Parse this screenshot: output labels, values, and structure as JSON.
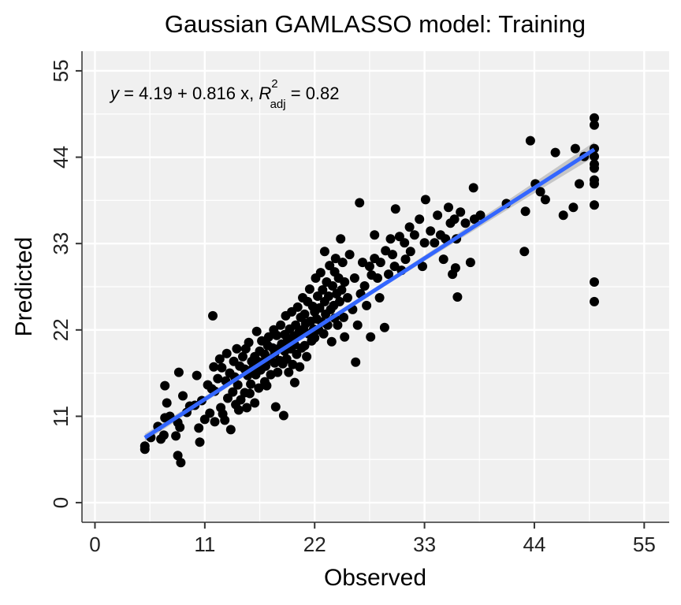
{
  "chart_data": {
    "type": "scatter",
    "title": "Gaussian GAMLASSO model: Training",
    "xlabel": "Observed",
    "ylabel": "Predicted",
    "xlim": [
      -1.3,
      57.5
    ],
    "ylim": [
      -2.5,
      57.5
    ],
    "xticks": [
      0,
      11,
      22,
      33,
      44,
      55
    ],
    "yticks": [
      0,
      11,
      22,
      33,
      44,
      55
    ],
    "grid": true,
    "colors": {
      "panel": "#f0f0f0",
      "grid": "#ffffff",
      "points": "#000000",
      "fit_line": "#3366ff",
      "ribbon": "#b3b3b3"
    },
    "annotation": {
      "prefix": "y",
      "equation": " = 4.19 + 0.816 x, ",
      "r_symbol": "R",
      "r_sup": "2",
      "r_sub": "adj",
      "r_value": " = 0.82"
    },
    "fit": {
      "intercept": 4.19,
      "slope": 0.816,
      "x_range": [
        5,
        50
      ]
    },
    "series": [
      {
        "points": [
          [
            5.0,
            7.2
          ],
          [
            5.0,
            6.8
          ],
          [
            5.6,
            8.3
          ],
          [
            6.3,
            9.7
          ],
          [
            6.6,
            8.1
          ],
          [
            6.9,
            8.6
          ],
          [
            7.0,
            10.8
          ],
          [
            7.0,
            14.9
          ],
          [
            7.2,
            12.7
          ],
          [
            7.5,
            11.0
          ],
          [
            8.1,
            8.5
          ],
          [
            8.3,
            10.2
          ],
          [
            8.3,
            6.0
          ],
          [
            8.4,
            16.6
          ],
          [
            8.5,
            9.6
          ],
          [
            8.6,
            5.1
          ],
          [
            8.8,
            13.6
          ],
          [
            9.2,
            11.5
          ],
          [
            9.5,
            12.3
          ],
          [
            10.0,
            12.4
          ],
          [
            10.2,
            16.2
          ],
          [
            10.4,
            9.5
          ],
          [
            10.5,
            7.7
          ],
          [
            10.7,
            13.0
          ],
          [
            11.0,
            10.6
          ],
          [
            11.3,
            15.0
          ],
          [
            11.5,
            11.4
          ],
          [
            11.7,
            14.5
          ],
          [
            11.8,
            23.8
          ],
          [
            11.9,
            17.3
          ],
          [
            12.0,
            14.2
          ],
          [
            12.0,
            10.3
          ],
          [
            12.3,
            15.8
          ],
          [
            12.5,
            18.3
          ],
          [
            12.6,
            12.1
          ],
          [
            12.7,
            17.2
          ],
          [
            12.8,
            11.3
          ],
          [
            13.0,
            10.5
          ],
          [
            13.1,
            15.5
          ],
          [
            13.2,
            19.0
          ],
          [
            13.3,
            13.3
          ],
          [
            13.5,
            16.5
          ],
          [
            13.6,
            9.3
          ],
          [
            13.8,
            14.1
          ],
          [
            13.9,
            18.0
          ],
          [
            14.0,
            16.0
          ],
          [
            14.1,
            12.5
          ],
          [
            14.2,
            19.6
          ],
          [
            14.3,
            15.0
          ],
          [
            14.4,
            11.8
          ],
          [
            14.5,
            17.4
          ],
          [
            14.6,
            13.1
          ],
          [
            14.8,
            18.6
          ],
          [
            15.0,
            14.0
          ],
          [
            15.0,
            17.0
          ],
          [
            15.1,
            19.6
          ],
          [
            15.2,
            12.1
          ],
          [
            15.3,
            16.2
          ],
          [
            15.4,
            20.4
          ],
          [
            15.5,
            13.9
          ],
          [
            15.6,
            15.1
          ],
          [
            15.7,
            18.0
          ],
          [
            15.8,
            17.1
          ],
          [
            16.0,
            12.7
          ],
          [
            16.0,
            18.6
          ],
          [
            16.1,
            16.3
          ],
          [
            16.2,
            21.8
          ],
          [
            16.3,
            18.0
          ],
          [
            16.4,
            14.6
          ],
          [
            16.5,
            19.3
          ],
          [
            16.6,
            16.9
          ],
          [
            16.7,
            20.6
          ],
          [
            16.8,
            17.9
          ],
          [
            17.0,
            15.4
          ],
          [
            17.0,
            18.9
          ],
          [
            17.1,
            17.4
          ],
          [
            17.2,
            14.9
          ],
          [
            17.3,
            20.0
          ],
          [
            17.4,
            21.1
          ],
          [
            17.5,
            18.3
          ],
          [
            17.6,
            16.3
          ],
          [
            17.8,
            19.7
          ],
          [
            17.9,
            22.0
          ],
          [
            18.0,
            17.8
          ],
          [
            18.0,
            19.0
          ],
          [
            18.1,
            12.2
          ],
          [
            18.2,
            21.3
          ],
          [
            18.3,
            16.6
          ],
          [
            18.4,
            19.6
          ],
          [
            18.5,
            18.1
          ],
          [
            18.6,
            22.6
          ],
          [
            18.7,
            20.2
          ],
          [
            18.8,
            17.7
          ],
          [
            18.9,
            11.1
          ],
          [
            19.0,
            19.3
          ],
          [
            19.0,
            21.4
          ],
          [
            19.1,
            23.8
          ],
          [
            19.2,
            18.3
          ],
          [
            19.3,
            20.7
          ],
          [
            19.4,
            16.6
          ],
          [
            19.5,
            22.1
          ],
          [
            19.6,
            19.6
          ],
          [
            19.7,
            24.3
          ],
          [
            19.8,
            17.6
          ],
          [
            19.9,
            21.2
          ],
          [
            20.0,
            20.1
          ],
          [
            20.0,
            15.3
          ],
          [
            20.1,
            22.6
          ],
          [
            20.2,
            18.9
          ],
          [
            20.3,
            24.9
          ],
          [
            20.4,
            21.6
          ],
          [
            20.5,
            17.3
          ],
          [
            20.6,
            23.6
          ],
          [
            20.7,
            19.7
          ],
          [
            20.8,
            26.1
          ],
          [
            20.9,
            22.1
          ],
          [
            21.0,
            20.0
          ],
          [
            21.0,
            24.0
          ],
          [
            21.1,
            22.8
          ],
          [
            21.2,
            18.6
          ],
          [
            21.3,
            25.6
          ],
          [
            21.4,
            21.5
          ],
          [
            21.5,
            27.2
          ],
          [
            21.6,
            23.1
          ],
          [
            21.7,
            20.6
          ],
          [
            21.8,
            25.0
          ],
          [
            21.9,
            22.1
          ],
          [
            22.0,
            24.3
          ],
          [
            22.0,
            21.0
          ],
          [
            22.1,
            28.6
          ],
          [
            22.2,
            23.4
          ],
          [
            22.3,
            26.3
          ],
          [
            22.4,
            22.0
          ],
          [
            22.5,
            24.8
          ],
          [
            22.6,
            29.3
          ],
          [
            22.7,
            23.0
          ],
          [
            22.8,
            27.1
          ],
          [
            22.9,
            21.5
          ],
          [
            23.0,
            25.6
          ],
          [
            23.0,
            32.0
          ],
          [
            23.1,
            24.0
          ],
          [
            23.2,
            28.1
          ],
          [
            23.3,
            22.6
          ],
          [
            23.4,
            26.3
          ],
          [
            23.5,
            30.2
          ],
          [
            23.6,
            24.6
          ],
          [
            23.7,
            20.5
          ],
          [
            23.8,
            27.6
          ],
          [
            23.9,
            25.1
          ],
          [
            24.0,
            29.4
          ],
          [
            24.0,
            23.5
          ],
          [
            24.1,
            31.1
          ],
          [
            24.2,
            26.6
          ],
          [
            24.3,
            22.6
          ],
          [
            24.4,
            28.6
          ],
          [
            24.5,
            25.6
          ],
          [
            24.6,
            33.6
          ],
          [
            24.7,
            27.1
          ],
          [
            24.8,
            30.6
          ],
          [
            24.9,
            23.6
          ],
          [
            25.0,
            28.1
          ],
          [
            25.0,
            21.1
          ],
          [
            25.3,
            26.1
          ],
          [
            25.5,
            31.6
          ],
          [
            25.8,
            24.6
          ],
          [
            26.0,
            28.6
          ],
          [
            26.1,
            17.9
          ],
          [
            26.3,
            22.6
          ],
          [
            26.5,
            38.2
          ],
          [
            26.6,
            26.6
          ],
          [
            26.8,
            30.6
          ],
          [
            27.0,
            27.6
          ],
          [
            27.2,
            25.1
          ],
          [
            27.5,
            30.1
          ],
          [
            27.6,
            21.1
          ],
          [
            27.7,
            29.0
          ],
          [
            28.0,
            31.1
          ],
          [
            28.0,
            34.1
          ],
          [
            28.3,
            28.6
          ],
          [
            28.5,
            26.1
          ],
          [
            28.6,
            30.6
          ],
          [
            29.0,
            22.3
          ],
          [
            29.1,
            32.1
          ],
          [
            29.4,
            29.1
          ],
          [
            29.6,
            33.6
          ],
          [
            29.8,
            31.6
          ],
          [
            30.0,
            30.1
          ],
          [
            30.1,
            37.4
          ],
          [
            30.5,
            33.9
          ],
          [
            30.7,
            29.6
          ],
          [
            31.0,
            33.1
          ],
          [
            31.1,
            31.0
          ],
          [
            31.5,
            35.1
          ],
          [
            31.6,
            32.0
          ],
          [
            32.0,
            34.1
          ],
          [
            32.5,
            36.1
          ],
          [
            32.8,
            30.1
          ],
          [
            33.0,
            33.1
          ],
          [
            33.1,
            38.6
          ],
          [
            33.6,
            34.6
          ],
          [
            34.0,
            33.1
          ],
          [
            34.3,
            36.6
          ],
          [
            34.6,
            34.1
          ],
          [
            34.9,
            31.0
          ],
          [
            35.1,
            33.6
          ],
          [
            35.4,
            37.6
          ],
          [
            35.6,
            35.6
          ],
          [
            35.8,
            29.1
          ],
          [
            36.0,
            36.1
          ],
          [
            36.1,
            29.9
          ],
          [
            36.2,
            33.6
          ],
          [
            36.3,
            26.2
          ],
          [
            36.6,
            37.0
          ],
          [
            37.1,
            35.6
          ],
          [
            37.6,
            30.6
          ],
          [
            37.9,
            40.1
          ],
          [
            38.0,
            36.1
          ],
          [
            38.6,
            36.6
          ],
          [
            41.2,
            38.1
          ],
          [
            43.0,
            32.0
          ],
          [
            43.1,
            37.1
          ],
          [
            43.6,
            46.1
          ],
          [
            44.1,
            40.6
          ],
          [
            44.6,
            39.6
          ],
          [
            45.1,
            38.6
          ],
          [
            46.1,
            44.6
          ],
          [
            46.9,
            36.6
          ],
          [
            47.9,
            37.6
          ],
          [
            48.1,
            45.1
          ],
          [
            48.5,
            40.6
          ],
          [
            49.0,
            44.1
          ],
          [
            50.0,
            49.0
          ],
          [
            50.0,
            48.1
          ],
          [
            50.0,
            45.1
          ],
          [
            50.0,
            44.1
          ],
          [
            50.0,
            43.1
          ],
          [
            50.0,
            42.6
          ],
          [
            50.0,
            41.1
          ],
          [
            50.0,
            40.6
          ],
          [
            50.0,
            37.9
          ],
          [
            50.0,
            28.1
          ],
          [
            50.0,
            25.6
          ]
        ]
      }
    ]
  }
}
